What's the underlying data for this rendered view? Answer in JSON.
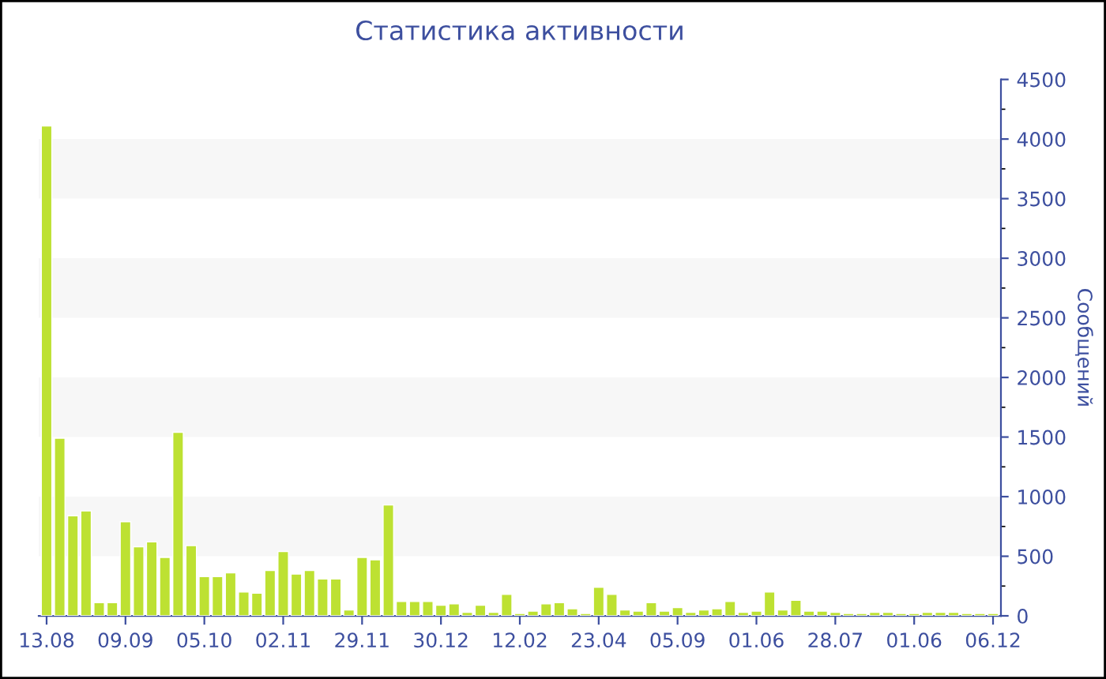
{
  "chart_data": {
    "type": "bar",
    "title": "Статистика активности",
    "ylabel": "Сообщений",
    "categories": [
      "13.08",
      null,
      null,
      null,
      null,
      null,
      "09.09",
      null,
      null,
      null,
      null,
      null,
      "05.10",
      null,
      null,
      null,
      null,
      null,
      "02.11",
      null,
      null,
      null,
      null,
      null,
      "29.11",
      null,
      null,
      null,
      null,
      null,
      "30.12",
      null,
      null,
      null,
      null,
      null,
      "12.02",
      null,
      null,
      null,
      null,
      null,
      "23.04",
      null,
      null,
      null,
      null,
      null,
      "05.09",
      null,
      null,
      null,
      null,
      null,
      "01.06",
      null,
      null,
      null,
      null,
      null,
      "28.07",
      null,
      null,
      null,
      null,
      null,
      "01.06",
      null,
      null,
      null,
      null,
      null,
      "06.12"
    ],
    "values": [
      4110,
      1490,
      840,
      880,
      110,
      110,
      790,
      580,
      620,
      490,
      1540,
      590,
      330,
      330,
      360,
      200,
      190,
      380,
      540,
      350,
      380,
      310,
      310,
      50,
      490,
      470,
      930,
      120,
      120,
      120,
      90,
      100,
      30,
      90,
      30,
      180,
      20,
      40,
      100,
      110,
      60,
      20,
      240,
      180,
      50,
      40,
      110,
      40,
      70,
      30,
      50,
      60,
      120,
      30,
      40,
      200,
      50,
      130,
      40,
      40,
      30,
      20,
      20,
      30,
      30,
      20,
      20,
      30,
      30,
      30,
      20,
      20,
      20
    ],
    "color": "#bde132",
    "ylim": [
      0,
      4500
    ],
    "yticks": [
      0,
      500,
      1000,
      1500,
      2000,
      2500,
      3000,
      3500,
      4000,
      4500
    ],
    "bands": [
      {
        "axis": "y",
        "from": 500,
        "to": 1000,
        "color": "#f7f7f7"
      },
      {
        "axis": "y",
        "from": 1500,
        "to": 2000,
        "color": "#f7f7f7"
      },
      {
        "axis": "y",
        "from": 2500,
        "to": 3000,
        "color": "#f7f7f7"
      },
      {
        "axis": "y",
        "from": 3500,
        "to": 4000,
        "color": "#f7f7f7"
      }
    ],
    "grid": false,
    "legend": false
  }
}
